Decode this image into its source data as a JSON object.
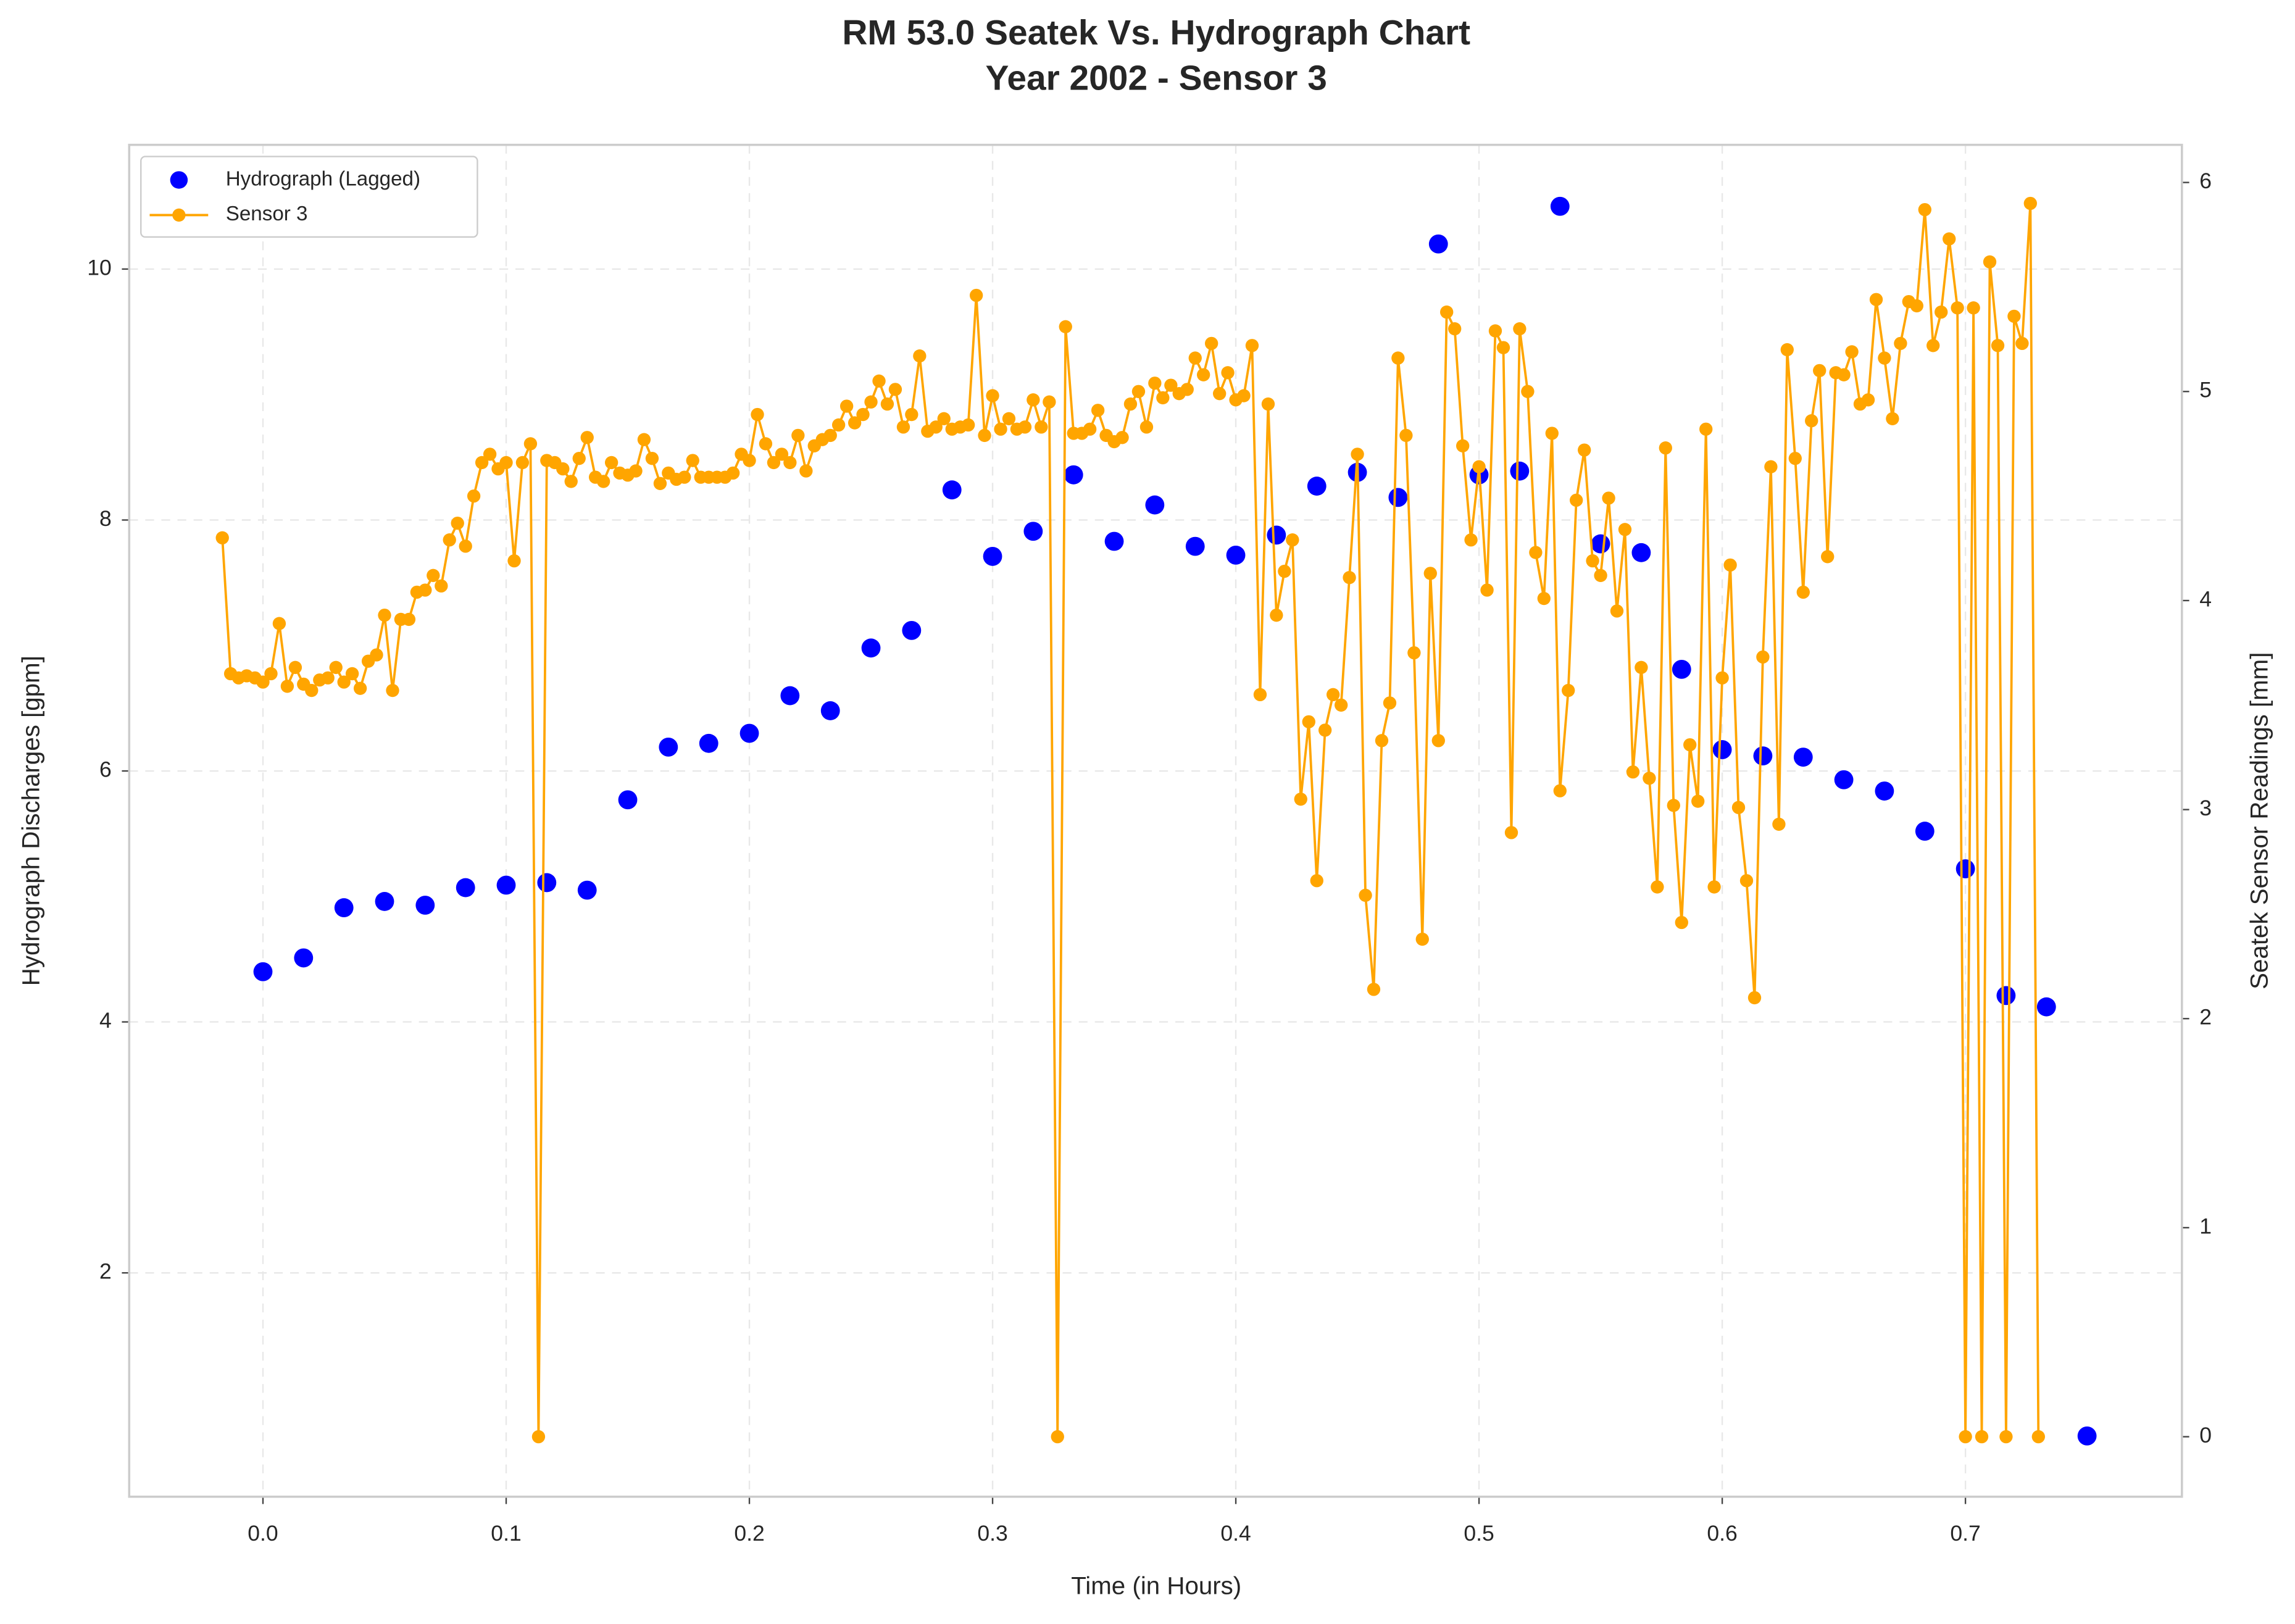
{
  "chart_data": {
    "type": "line",
    "title": "RM 53.0 Seatek Vs. Hydrograph Chart",
    "subtitle": "Year 2002 - Sensor 3",
    "xlabel": "Time (in Hours)",
    "ylabel": "Hydrograph Discharges [gpm]",
    "y2label": "Seatek Sensor Readings [mm]",
    "xlim": [
      -0.055,
      0.789
    ],
    "ylim": [
      0.216,
      10.99
    ],
    "y2lim": [
      -0.287,
      6.18
    ],
    "xticks": [
      {
        "value": 0,
        "label": "0.0"
      },
      0.1,
      0.2,
      0.3,
      0.4,
      0.5,
      0.6,
      0.7
    ],
    "yticks": [
      2,
      4,
      6,
      8,
      10
    ],
    "y2ticks": [
      0,
      1,
      2,
      3,
      4,
      5,
      6
    ],
    "grid": true,
    "legend": "upper-left",
    "series": [
      {
        "name": "Hydrograph (Lagged)",
        "color": "#0000ff",
        "style": "markers",
        "axis": "y",
        "x": [
          0,
          0.0167,
          0.0333,
          0.05,
          0.0667,
          0.0833,
          0.1,
          0.1167,
          0.1333,
          0.15,
          0.1667,
          0.1833,
          0.2,
          0.2167,
          0.2333,
          0.25,
          0.2667,
          0.2833,
          0.3,
          0.3167,
          0.3333,
          0.35,
          0.3667,
          0.3833,
          0.4,
          0.4167,
          0.4333,
          0.45,
          0.4667,
          0.4833,
          0.5,
          0.5167,
          0.5333,
          0.55,
          0.5667,
          0.5833,
          0.6,
          0.6167,
          0.6333,
          0.65,
          0.6667,
          0.6833,
          0.7,
          0.7167,
          0.7333,
          0.75
        ],
        "values": [
          4.4,
          4.51,
          4.91,
          4.96,
          4.93,
          5.07,
          5.09,
          5.11,
          5.05,
          5.77,
          6.19,
          6.22,
          6.3,
          6.6,
          6.48,
          6.98,
          7.12,
          8.24,
          7.71,
          7.91,
          8.36,
          7.83,
          8.12,
          7.79,
          7.72,
          7.88,
          8.27,
          8.38,
          8.18,
          10.2,
          8.36,
          8.39,
          10.5,
          7.81,
          7.74,
          6.81,
          6.17,
          6.12,
          6.11,
          5.93,
          5.84,
          5.52,
          5.22,
          4.21,
          4.12,
          0.7
        ]
      },
      {
        "name": "Sensor 3",
        "color": "#ffa500",
        "style": "line-markers",
        "axis": "y2",
        "x": [
          -0.0167,
          -0.0133,
          -0.01,
          -0.0067,
          -0.0033,
          0,
          0.0033,
          0.0067,
          0.01,
          0.0133,
          0.0167,
          0.02,
          0.0233,
          0.0267,
          0.03,
          0.0333,
          0.0367,
          0.04,
          0.0433,
          0.0467,
          0.05,
          0.0533,
          0.0567,
          0.06,
          0.0633,
          0.0667,
          0.07,
          0.0733,
          0.0767,
          0.08,
          0.0833,
          0.0867,
          0.09,
          0.0933,
          0.0967,
          0.1,
          0.1033,
          0.1067,
          0.11,
          0.1133,
          0.1167,
          0.12,
          0.1233,
          0.1267,
          0.13,
          0.1333,
          0.1367,
          0.14,
          0.1433,
          0.1467,
          0.15,
          0.1533,
          0.1567,
          0.16,
          0.1633,
          0.1667,
          0.17,
          0.1733,
          0.1767,
          0.18,
          0.1833,
          0.1867,
          0.19,
          0.1933,
          0.1967,
          0.2,
          0.2033,
          0.2067,
          0.21,
          0.2133,
          0.2167,
          0.22,
          0.2233,
          0.2267,
          0.23,
          0.2333,
          0.2367,
          0.24,
          0.2433,
          0.2467,
          0.25,
          0.2533,
          0.2567,
          0.26,
          0.2633,
          0.2667,
          0.27,
          0.2733,
          0.2767,
          0.28,
          0.2833,
          0.2867,
          0.29,
          0.2933,
          0.2967,
          0.3,
          0.3033,
          0.3067,
          0.31,
          0.3133,
          0.3167,
          0.32,
          0.3233,
          0.3267,
          0.33,
          0.3333,
          0.3367,
          0.34,
          0.3433,
          0.3467,
          0.35,
          0.3533,
          0.3567,
          0.36,
          0.3633,
          0.3667,
          0.37,
          0.3733,
          0.3767,
          0.38,
          0.3833,
          0.3867,
          0.39,
          0.3933,
          0.3967,
          0.4,
          0.4033,
          0.4067,
          0.41,
          0.4133,
          0.4167,
          0.42,
          0.4233,
          0.4267,
          0.43,
          0.4333,
          0.4367,
          0.44,
          0.4433,
          0.4467,
          0.45,
          0.4533,
          0.4567,
          0.46,
          0.4633,
          0.4667,
          0.47,
          0.4733,
          0.4767,
          0.48,
          0.4833,
          0.4867,
          0.49,
          0.4933,
          0.4967,
          0.5,
          0.5033,
          0.5067,
          0.51,
          0.5133,
          0.5167,
          0.52,
          0.5233,
          0.5267,
          0.53,
          0.5333,
          0.5367,
          0.54,
          0.5433,
          0.5467,
          0.55,
          0.5533,
          0.5567,
          0.56,
          0.5633,
          0.5667,
          0.57,
          0.5733,
          0.5767,
          0.58,
          0.5833,
          0.5867,
          0.59,
          0.5933,
          0.5967,
          0.6,
          0.6033,
          0.6067,
          0.61,
          0.6133,
          0.6167,
          0.62,
          0.6233,
          0.6267,
          0.63,
          0.6333,
          0.6367,
          0.64,
          0.6433,
          0.6467,
          0.65,
          0.6533,
          0.6567,
          0.66,
          0.6633,
          0.6667,
          0.67,
          0.6733,
          0.6767,
          0.68,
          0.6833,
          0.6867,
          0.69,
          0.6933,
          0.6967,
          0.7,
          0.7033,
          0.7067,
          0.71,
          0.7133,
          0.7167,
          0.72,
          0.7233,
          0.7267,
          0.73
        ],
        "values": [
          4.3,
          3.65,
          3.63,
          3.64,
          3.63,
          3.61,
          3.65,
          3.89,
          3.59,
          3.68,
          3.6,
          3.57,
          3.62,
          3.63,
          3.68,
          3.61,
          3.65,
          3.58,
          3.71,
          3.74,
          3.93,
          3.57,
          3.91,
          3.91,
          4.04,
          4.05,
          4.12,
          4.07,
          4.29,
          4.37,
          4.26,
          4.5,
          4.66,
          4.7,
          4.63,
          4.66,
          4.19,
          4.66,
          4.75,
          0,
          4.67,
          4.66,
          4.63,
          4.57,
          4.68,
          4.78,
          4.59,
          4.57,
          4.66,
          4.61,
          4.6,
          4.62,
          4.77,
          4.68,
          4.56,
          4.61,
          4.58,
          4.59,
          4.67,
          4.59,
          4.59,
          4.59,
          4.59,
          4.61,
          4.7,
          4.67,
          4.89,
          4.75,
          4.66,
          4.7,
          4.66,
          4.79,
          4.62,
          4.74,
          4.77,
          4.79,
          4.84,
          4.93,
          4.85,
          4.89,
          4.95,
          5.05,
          4.94,
          5.01,
          4.83,
          4.89,
          5.17,
          4.81,
          4.83,
          4.87,
          4.82,
          4.83,
          4.84,
          5.46,
          4.79,
          4.98,
          4.82,
          4.87,
          4.82,
          4.83,
          4.96,
          4.83,
          4.95,
          0,
          5.31,
          4.8,
          4.8,
          4.82,
          4.91,
          4.79,
          4.76,
          4.78,
          4.94,
          5.0,
          4.83,
          5.04,
          4.97,
          5.03,
          4.99,
          5.01,
          5.16,
          5.08,
          5.23,
          4.99,
          5.09,
          4.96,
          4.98,
          5.22,
          3.55,
          4.94,
          3.93,
          4.14,
          4.29,
          3.05,
          3.42,
          2.66,
          3.38,
          3.55,
          3.5,
          4.11,
          4.7,
          2.59,
          2.14,
          3.33,
          3.51,
          5.16,
          4.79,
          3.75,
          2.38,
          4.13,
          3.33,
          5.38,
          5.3,
          4.74,
          4.29,
          4.64,
          4.05,
          5.29,
          5.21,
          2.89,
          5.3,
          5.0,
          4.23,
          4.01,
          4.8,
          3.09,
          3.57,
          4.48,
          4.72,
          4.19,
          4.12,
          4.49,
          3.95,
          4.34,
          3.18,
          3.68,
          3.15,
          2.63,
          4.73,
          3.02,
          2.46,
          3.31,
          3.04,
          4.82,
          2.63,
          3.63,
          4.17,
          3.01,
          2.66,
          2.1,
          3.73,
          4.64,
          2.93,
          5.2,
          4.68,
          4.04,
          4.86,
          5.1,
          4.21,
          5.09,
          5.08,
          5.19,
          4.94,
          4.96,
          5.44,
          5.16,
          4.87,
          5.23,
          5.43,
          5.41,
          5.87,
          5.22,
          5.38,
          5.73,
          5.4,
          0,
          5.4,
          0,
          5.62,
          5.22,
          0,
          5.36,
          5.23,
          5.9,
          0
        ]
      }
    ]
  }
}
